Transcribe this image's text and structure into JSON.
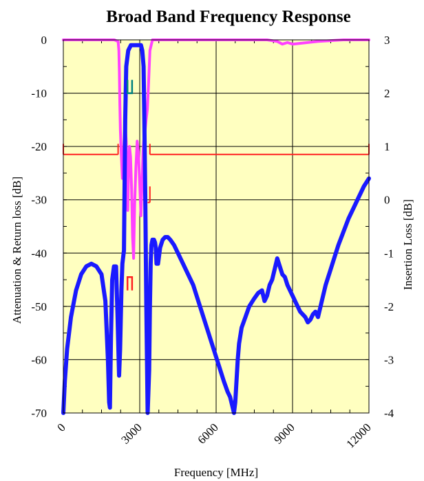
{
  "chart_data": {
    "type": "line",
    "title": "Broad Band Frequency Response",
    "xlabel": "Frequency [MHz]",
    "ylabel": "Attenuation & Return loss [dB]",
    "ylabel_right": "Insertion Loss [dB]",
    "xlim": [
      0,
      12000
    ],
    "ylim": [
      -70,
      0
    ],
    "ylim_right": [
      -4,
      3
    ],
    "x_ticks": [
      0,
      3000,
      6000,
      9000,
      12000
    ],
    "y_ticks": [
      0,
      -10,
      -20,
      -30,
      -40,
      -50,
      -60,
      -70
    ],
    "y_right_ticks": [
      3,
      2,
      1,
      0,
      -1,
      -2,
      -3,
      -4
    ],
    "grid": true,
    "legend": "none",
    "colors": {
      "background": "#ffffc0",
      "attenuation": "#1a1aff",
      "return_loss": "#ff40ff",
      "mask": "#ff2020",
      "mask_upper": "#008080"
    },
    "series": [
      {
        "key": "attenuation",
        "axis": "left",
        "x": [
          0,
          60,
          150,
          300,
          500,
          700,
          900,
          1100,
          1300,
          1500,
          1650,
          1750,
          1800,
          1830,
          1870,
          1920,
          1990,
          2070,
          2130,
          2190,
          2230,
          2280,
          2320,
          2380,
          2400,
          2430,
          2470,
          2550,
          2650,
          2800,
          2950,
          3050,
          3100,
          3150,
          3180,
          3220,
          3260,
          3310,
          3370,
          3400,
          3430,
          3460,
          3500,
          3560,
          3600,
          3630,
          3660,
          3720,
          3800,
          3900,
          4000,
          4100,
          4200,
          4350,
          4500,
          4700,
          4900,
          5100,
          5300,
          5500,
          5700,
          5900,
          6100,
          6300,
          6450,
          6550,
          6650,
          6700,
          6750,
          6800,
          6850,
          6900,
          7000,
          7150,
          7300,
          7500,
          7650,
          7800,
          7900,
          8000,
          8100,
          8200,
          8300,
          8400,
          8500,
          8600,
          8700,
          8800,
          8900,
          9000,
          9100,
          9200,
          9300,
          9400,
          9500,
          9600,
          9700,
          9800,
          9900,
          10000,
          10100,
          10200,
          10300,
          10400,
          10500,
          10600,
          10800,
          11000,
          11200,
          11400,
          11600,
          11800,
          12000
        ],
        "y": [
          -70,
          -64,
          -58,
          -52,
          -47,
          -44,
          -42.5,
          -42,
          -42.5,
          -44,
          -49,
          -60,
          -68,
          -69,
          -56,
          -45,
          -42.5,
          -42.5,
          -52,
          -63,
          -58,
          -47,
          -42,
          -39.5,
          -30,
          -15,
          -5,
          -2,
          -1,
          -1,
          -1,
          -1,
          -2,
          -5,
          -15,
          -30,
          -50,
          -70,
          -62,
          -50,
          -42,
          -38.5,
          -37.5,
          -37.5,
          -38,
          -39,
          -42,
          -42,
          -39,
          -37.5,
          -37,
          -37,
          -37.5,
          -38.5,
          -40,
          -42,
          -44,
          -46,
          -49,
          -52,
          -55,
          -58,
          -61,
          -64,
          -66,
          -67,
          -69,
          -70,
          -68,
          -64,
          -60,
          -57,
          -54,
          -52,
          -50,
          -48.5,
          -47.5,
          -47,
          -49,
          -48,
          -46,
          -45,
          -43,
          -41,
          -42.5,
          -44,
          -44.5,
          -46,
          -47,
          -48,
          -49,
          -50,
          -51,
          -51.5,
          -52,
          -53,
          -52.5,
          -51.5,
          -51,
          -52,
          -50,
          -48,
          -46,
          -44.5,
          -43,
          -41.5,
          -38.5,
          -36,
          -33.5,
          -31.5,
          -29.5,
          -27.5,
          -26
        ]
      },
      {
        "key": "return_loss",
        "axis": "left",
        "x": [
          0,
          1000,
          2000,
          2150,
          2180,
          2200,
          2220,
          2240,
          2280,
          2320,
          2370,
          2420,
          2470,
          2510,
          2530,
          2560,
          2600,
          2640,
          2680,
          2720,
          2760,
          2800,
          2850,
          2900,
          2950,
          3000,
          3050,
          3090,
          3130,
          3170,
          3210,
          3250,
          3300,
          3350,
          3400,
          3500,
          4000,
          5000,
          6000,
          7000,
          8000,
          8400,
          8600,
          8800,
          9000,
          10000,
          11000,
          12000
        ],
        "y": [
          0,
          0,
          0,
          -0.3,
          -2,
          -6,
          -12,
          -17,
          -22,
          -26,
          -21,
          -15,
          -19,
          -25,
          -32,
          -25,
          -20,
          -22,
          -28,
          -37,
          -41,
          -31,
          -24,
          -19,
          -21,
          -27,
          -33,
          -27,
          -21,
          -18,
          -17,
          -15,
          -13,
          -8,
          -2,
          0,
          0,
          0,
          0,
          0,
          0,
          -0.3,
          -0.8,
          -0.5,
          -0.8,
          -0.3,
          0,
          0
        ]
      }
    ],
    "mask_segments": [
      {
        "key": "lower-mask-left",
        "x": [
          0,
          2150
        ],
        "y": [
          -21.5,
          -21.5
        ]
      },
      {
        "key": "lower-mask-right",
        "x": [
          3400,
          12000
        ],
        "y": [
          -21.5,
          -21.5
        ]
      },
      {
        "key": "mask-tick-0",
        "x": [
          0,
          0
        ],
        "y": [
          -19.5,
          -21.5
        ]
      },
      {
        "key": "mask-tick-2150",
        "x": [
          2150,
          2150
        ],
        "y": [
          -19.5,
          -21.5
        ]
      },
      {
        "key": "mask-tick-3400",
        "x": [
          3400,
          3400
        ],
        "y": [
          -19.5,
          -21.5
        ]
      },
      {
        "key": "mask-tick-12000",
        "x": [
          12000,
          12000
        ],
        "y": [
          -19.5,
          -21.5
        ]
      },
      {
        "key": "mask-mid-step",
        "x": [
          3400,
          3400
        ],
        "y": [
          -27.5,
          -30.5
        ]
      },
      {
        "key": "mask-mid-step-foot",
        "x": [
          3310,
          3400
        ],
        "y": [
          -30.5,
          -30.5
        ]
      },
      {
        "key": "stopband-mask",
        "x": [
          2520,
          2520,
          2700,
          2700
        ],
        "y": [
          -47,
          -44.5,
          -44.5,
          -47
        ]
      },
      {
        "key": "upper-mask",
        "x": [
          2520,
          2520,
          2700,
          2700
        ],
        "y": [
          -7.5,
          -10,
          -10,
          -7.5
        ]
      }
    ]
  }
}
